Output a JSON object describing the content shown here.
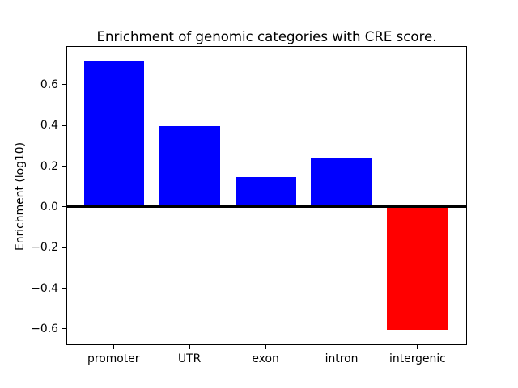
{
  "chart_data": {
    "type": "bar",
    "title": "Enrichment of genomic categories with CRE score.",
    "xlabel": "",
    "ylabel": "Enrichment (log10)",
    "categories": [
      "promoter",
      "UTR",
      "exon",
      "intron",
      "intergenic"
    ],
    "values": [
      0.72,
      0.4,
      0.145,
      0.24,
      -0.61
    ],
    "bar_colors": [
      "#0000ff",
      "#0000ff",
      "#0000ff",
      "#0000ff",
      "#ff0000"
    ],
    "positive_color": "#0000ff",
    "negative_color": "#ff0000",
    "bar_width": 0.8,
    "xlim": [
      -0.62,
      4.65
    ],
    "ylim": [
      -0.68,
      0.79
    ],
    "yticks": [
      0.6,
      0.4,
      0.2,
      0.0,
      -0.2,
      -0.4,
      -0.6
    ],
    "ytick_labels": [
      "0.6",
      "0.4",
      "0.2",
      "0.0",
      "−0.2",
      "−0.4",
      "−0.6"
    ],
    "zero_line": true,
    "zero_line_color": "#000000",
    "grid": false,
    "legend_position": "none",
    "background_color": "#ffffff",
    "axis_color": "#000000"
  }
}
